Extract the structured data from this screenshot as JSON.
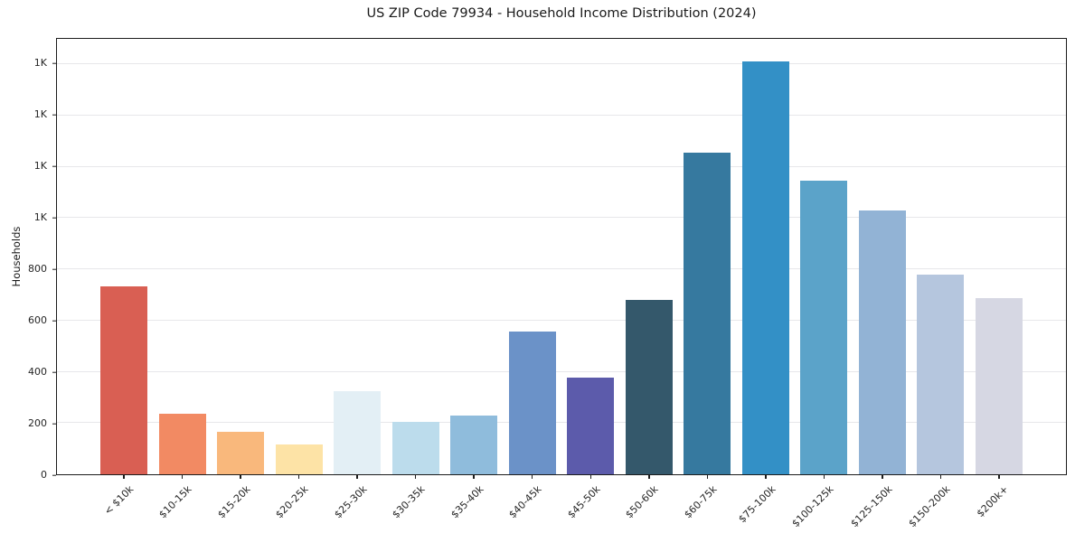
{
  "chart_data": {
    "type": "bar",
    "title": "US ZIP Code 79934 - Household Income Distribution (2024)",
    "xlabel": "",
    "ylabel": "Households",
    "ylim": [
      0,
      1700
    ],
    "ytick_interval": 200,
    "ytick_values": [
      0,
      200,
      400,
      600,
      800,
      1000,
      1200,
      1400,
      1600
    ],
    "ytick_labels": [
      "0",
      "200",
      "400",
      "600",
      "800",
      "1K",
      "1K",
      "1K",
      "1K"
    ],
    "grid": "horizontal",
    "legend": "none",
    "categories": [
      "< $10k",
      "$10-15k",
      "$15-20k",
      "$20-25k",
      "$25-30k",
      "$30-35k",
      "$35-40k",
      "$40-45k",
      "$45-50k",
      "$50-60k",
      "$60-75k",
      "$75-100k",
      "$100-125k",
      "$125-150k",
      "$150-200k",
      "$200k+"
    ],
    "values": [
      735,
      238,
      166,
      118,
      324,
      203,
      230,
      558,
      377,
      680,
      1256,
      1612,
      1148,
      1030,
      779,
      689
    ],
    "bar_colors": [
      "#d95f53",
      "#f28a63",
      "#f9b87c",
      "#fde3a6",
      "#e3eff5",
      "#bcdcec",
      "#8fbcdc",
      "#6b92c8",
      "#5c5bab",
      "#34586b",
      "#36799f",
      "#3390c6",
      "#5ba3c9",
      "#92b3d5",
      "#b5c6de",
      "#d6d7e3"
    ],
    "colors": {
      "background": "#ffffff",
      "gridline": "#e7e7ea",
      "spine": "#1c1c1c",
      "text": "#262626"
    }
  }
}
